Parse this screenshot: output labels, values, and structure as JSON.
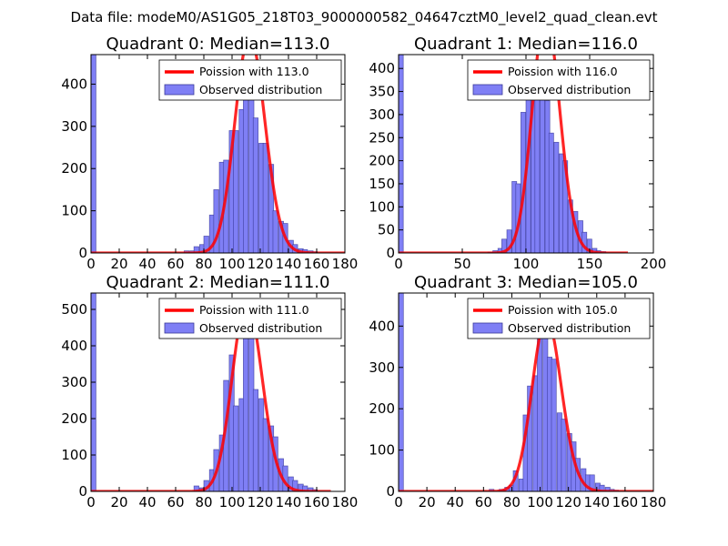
{
  "figure_title": "Data file: modeM0/AS1G05_218T03_9000000582_04647cztM0_level2_quad_clean.evt",
  "colors": {
    "hist_fill": "#7f7ff5",
    "hist_edge": "#3a3a9a",
    "fit_line": "#ff0000",
    "axes": "#000000"
  },
  "chart_data": [
    {
      "type": "bar",
      "title": "Quadrant 0: Median=113.0",
      "xlim": [
        0,
        180
      ],
      "ylim": [
        0,
        470
      ],
      "xticks": [
        0,
        20,
        40,
        60,
        80,
        100,
        120,
        140,
        160,
        180
      ],
      "yticks": [
        0,
        100,
        200,
        300,
        400
      ],
      "legend": {
        "line_label": "Poission with 113.0",
        "bar_label": "Observed distribution",
        "position": "upper right"
      },
      "hist": {
        "bin_width": 3.5,
        "left_edges": [
          0,
          66,
          70,
          73,
          77,
          80,
          84,
          87,
          91,
          94,
          98,
          101,
          105,
          108,
          112,
          115,
          119,
          122,
          126,
          129,
          133,
          136,
          140,
          143,
          147,
          150,
          154,
          157
        ],
        "counts": [
          470,
          5,
          5,
          15,
          20,
          40,
          90,
          150,
          215,
          220,
          290,
          290,
          340,
          420,
          450,
          320,
          260,
          260,
          210,
          100,
          75,
          70,
          30,
          20,
          10,
          8,
          5,
          3
        ]
      },
      "fit": {
        "mu": 113.0,
        "x_range": [
          0,
          180
        ]
      }
    },
    {
      "type": "bar",
      "title": "Quadrant 1: Median=116.0",
      "xlim": [
        0,
        200
      ],
      "ylim": [
        0,
        430
      ],
      "xticks": [
        0,
        50,
        100,
        150,
        200
      ],
      "yticks": [
        0,
        50,
        100,
        150,
        200,
        250,
        300,
        350,
        400
      ],
      "legend": {
        "line_label": "Poission with 116.0",
        "bar_label": "Observed distribution",
        "position": "upper right"
      },
      "hist": {
        "bin_width": 3.7,
        "left_edges": [
          0,
          70,
          74,
          78,
          81,
          85,
          89,
          92,
          96,
          100,
          104,
          107,
          111,
          115,
          118,
          122,
          126,
          129,
          133,
          137,
          141,
          144,
          148,
          152,
          155,
          159
        ],
        "counts": [
          430,
          2,
          5,
          10,
          30,
          50,
          155,
          150,
          305,
          335,
          345,
          405,
          360,
          330,
          260,
          240,
          215,
          200,
          115,
          90,
          70,
          45,
          30,
          10,
          5,
          3
        ]
      },
      "fit": {
        "mu": 116.0,
        "x_range": [
          0,
          180
        ]
      }
    },
    {
      "type": "bar",
      "title": "Quadrant 2: Median=111.0",
      "xlim": [
        0,
        180
      ],
      "ylim": [
        0,
        545
      ],
      "xticks": [
        0,
        20,
        40,
        60,
        80,
        100,
        120,
        140,
        160,
        180
      ],
      "yticks": [
        0,
        100,
        200,
        300,
        400,
        500
      ],
      "legend": {
        "line_label": "Poission with 111.0",
        "bar_label": "Observed distribution",
        "position": "upper right"
      },
      "hist": {
        "bin_width": 3.5,
        "left_edges": [
          0,
          73,
          77,
          80,
          84,
          87,
          91,
          94,
          98,
          101,
          105,
          108,
          112,
          115,
          119,
          122,
          126,
          129,
          133,
          136,
          140,
          143,
          147,
          150,
          154,
          157
        ],
        "counts": [
          545,
          15,
          10,
          30,
          60,
          115,
          155,
          305,
          375,
          235,
          255,
          510,
          525,
          280,
          255,
          200,
          180,
          150,
          90,
          70,
          40,
          30,
          20,
          15,
          10,
          5
        ]
      },
      "fit": {
        "mu": 111.0,
        "x_range": [
          0,
          170
        ]
      }
    },
    {
      "type": "bar",
      "title": "Quadrant 3: Median=105.0",
      "xlim": [
        0,
        180
      ],
      "ylim": [
        0,
        480
      ],
      "xticks": [
        0,
        20,
        40,
        60,
        80,
        100,
        120,
        140,
        160,
        180
      ],
      "yticks": [
        0,
        100,
        200,
        300,
        400
      ],
      "legend": {
        "line_label": "Poission with 105.0",
        "bar_label": "Observed distribution",
        "position": "upper right"
      },
      "hist": {
        "bin_width": 3.4,
        "left_edges": [
          0,
          64,
          71,
          75,
          78,
          81,
          85,
          88,
          91,
          95,
          98,
          102,
          105,
          108,
          112,
          115,
          119,
          122,
          125,
          129,
          132,
          135,
          139,
          142,
          146,
          149,
          152
        ],
        "counts": [
          480,
          5,
          5,
          10,
          15,
          50,
          30,
          185,
          255,
          280,
          425,
          370,
          325,
          320,
          190,
          175,
          140,
          120,
          80,
          55,
          40,
          40,
          20,
          15,
          10,
          5,
          3
        ]
      },
      "fit": {
        "mu": 105.0,
        "x_range": [
          0,
          180
        ]
      }
    }
  ]
}
